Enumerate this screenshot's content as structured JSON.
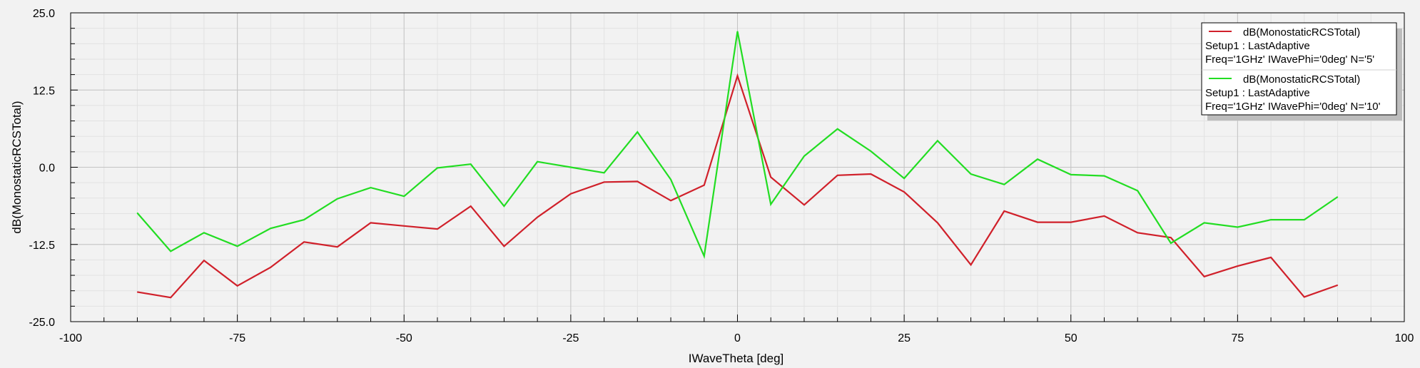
{
  "chart_data": {
    "type": "line",
    "xlabel": "IWaveTheta [deg]",
    "ylabel": "dB(MonostaticRCSTotal)",
    "xlim": [
      -100,
      100
    ],
    "ylim": [
      -25,
      25
    ],
    "xticks": [
      -100,
      -75,
      -50,
      -25,
      0,
      25,
      50,
      75,
      100
    ],
    "yticks": [
      -25.0,
      -12.5,
      0.0,
      12.5,
      25.0
    ],
    "ytick_labels": [
      "-25.0",
      "-12.5",
      "0.0",
      "12.5",
      "25.0"
    ],
    "grid": true,
    "legend_position": "top-right",
    "x": [
      -90,
      -85,
      -80,
      -75,
      -70,
      -65,
      -60,
      -55,
      -50,
      -45,
      -40,
      -35,
      -30,
      -25,
      -20,
      -15,
      -10,
      -5,
      0,
      5,
      10,
      15,
      20,
      25,
      30,
      35,
      40,
      45,
      50,
      55,
      60,
      65,
      70,
      75,
      80,
      85,
      90
    ],
    "series": [
      {
        "name": "dB(MonostaticRCSTotal)",
        "legend_lines": [
          "Setup1 : LastAdaptive",
          "Freq='1GHz' IWavePhi='0deg' N='5'"
        ],
        "color": "#d0202a",
        "values": [
          -20.2,
          -21.1,
          -15.1,
          -19.2,
          -16.2,
          -12.1,
          -12.9,
          -9.0,
          -9.5,
          -10.0,
          -6.3,
          -12.8,
          -8.1,
          -4.3,
          -2.4,
          -2.3,
          -5.4,
          -2.9,
          14.8,
          -1.6,
          -6.1,
          -1.3,
          -1.1,
          -4.0,
          -9.0,
          -15.8,
          -7.1,
          -8.9,
          -8.9,
          -7.9,
          -10.6,
          -11.4,
          -17.7,
          -16.0,
          -14.6,
          -21.0,
          -19.1
        ]
      },
      {
        "name": "dB(MonostaticRCSTotal)",
        "legend_lines": [
          "Setup1 : LastAdaptive",
          "Freq='1GHz' IWavePhi='0deg' N='10'"
        ],
        "color": "#22dd22",
        "values": [
          -7.4,
          -13.6,
          -10.6,
          -12.8,
          -9.9,
          -8.5,
          -5.1,
          -3.3,
          -4.7,
          -0.1,
          0.5,
          -6.3,
          0.9,
          0.0,
          -0.9,
          5.7,
          -2.0,
          -14.4,
          22.0,
          -6.0,
          1.8,
          6.2,
          2.6,
          -1.8,
          4.3,
          -1.1,
          -2.8,
          1.3,
          -1.2,
          -1.4,
          -3.8,
          -12.3,
          -9.0,
          -9.7,
          -8.5,
          -8.5,
          -4.8
        ]
      }
    ]
  }
}
